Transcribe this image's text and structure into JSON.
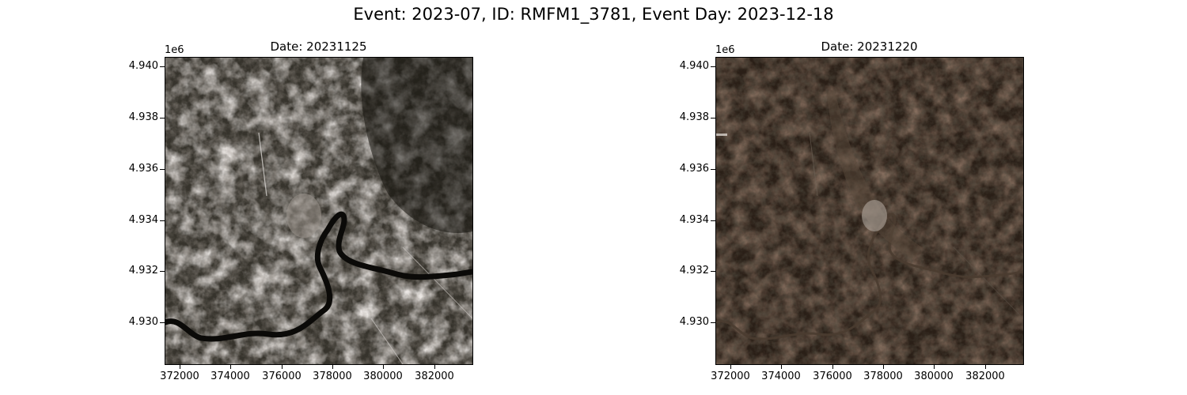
{
  "figure": {
    "suptitle": "Event: 2023-07, ID: RMFM1_3781, Event Day: 2023-12-18"
  },
  "panels": [
    {
      "title": "Date: 20231125",
      "y_offset_label": "1e6",
      "yticks": [
        "4.940",
        "4.938",
        "4.936",
        "4.934",
        "4.932",
        "4.930"
      ],
      "xticks": [
        "372000",
        "374000",
        "376000",
        "378000",
        "380000",
        "382000"
      ],
      "scene": "snow-dusted terrain with dark forest and a winding river"
    },
    {
      "title": "Date: 20231220",
      "y_offset_label": "1e6",
      "yticks": [
        "4.940",
        "4.938",
        "4.936",
        "4.934",
        "4.932",
        "4.930"
      ],
      "xticks": [
        "372000",
        "374000",
        "376000",
        "378000",
        "380000",
        "382000"
      ],
      "scene": "dark brown forested terrain with town and river"
    }
  ],
  "colors": {
    "snow": "#e9e6e4",
    "forest_dark": "#1c1a12",
    "river": "#0b0a08",
    "brown_terrain": "#3a2a20",
    "town": "#b8b2ac"
  }
}
